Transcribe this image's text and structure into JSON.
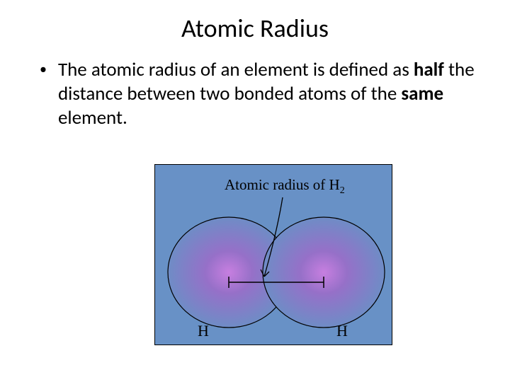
{
  "title": "Atomic Radius",
  "bullet": {
    "segments": [
      {
        "text": "The atomic radius of an element is defined as ",
        "bold": false
      },
      {
        "text": "half",
        "bold": true
      },
      {
        "text": " the distance between two bonded atoms of the ",
        "bold": false
      },
      {
        "text": "same",
        "bold": true
      },
      {
        "text": " element.",
        "bold": false
      }
    ]
  },
  "figure": {
    "background_color": "#6891c6",
    "border_color": "#000000",
    "top_label": "Atomic radius of H",
    "top_label_sub": "2",
    "left_atom_label": "H",
    "right_atom_label": "H",
    "atom": {
      "outline_color": "#000000",
      "glow_inner": "#c77fe0",
      "glow_mid": "#9670c8",
      "glow_outer": "#6891c6"
    },
    "line_color": "#000000",
    "arrow_color": "#000000"
  }
}
